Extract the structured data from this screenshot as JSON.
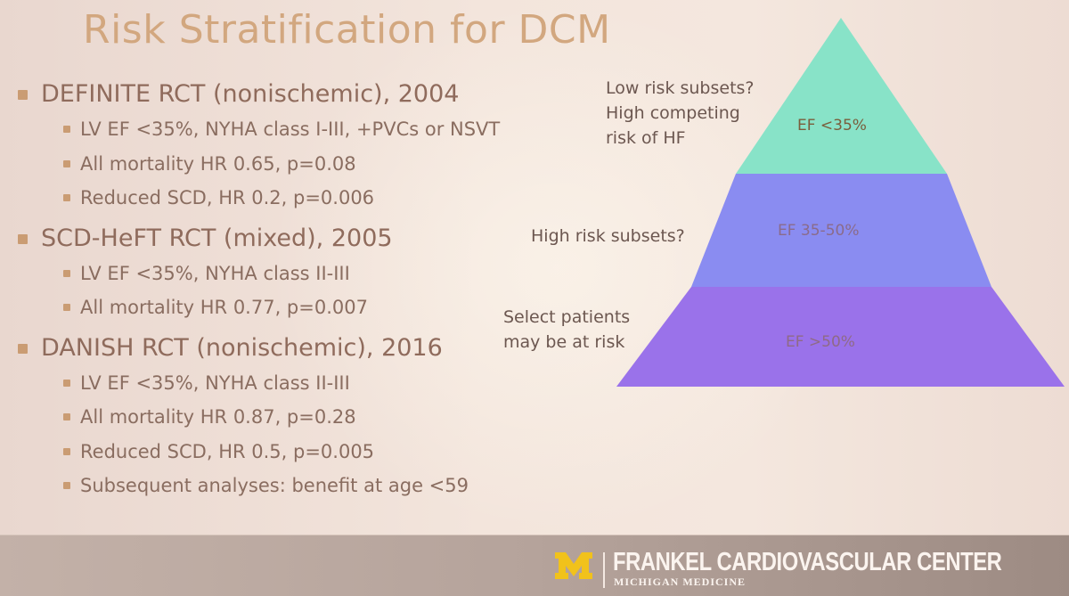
{
  "slide": {
    "title": "Risk Stratification for DCM",
    "bullets": [
      {
        "heading": "DEFINITE RCT (nonischemic), 2004",
        "items": [
          "LV EF <35%, NYHA class I-III, +PVCs or NSVT",
          "All mortality HR 0.65, p=0.08",
          "Reduced SCD, HR 0.2, p=0.006"
        ]
      },
      {
        "heading": "SCD-HeFT RCT (mixed), 2005",
        "items": [
          "LV EF <35%, NYHA class II-III",
          "All mortality HR 0.77, p=0.007"
        ]
      },
      {
        "heading": "DANISH RCT (nonischemic), 2016",
        "items": [
          "LV EF <35%, NYHA class II-III",
          "All mortality HR 0.87, p=0.28",
          "Reduced SCD, HR 0.5, p=0.005",
          "Subsequent analyses: benefit at age <59"
        ]
      }
    ]
  },
  "pyramid": {
    "tiers": [
      {
        "label": "EF <35%",
        "fill": "#88e3c8",
        "text_color": "#7a5e3c"
      },
      {
        "label": "EF 35-50%",
        "fill": "#8a8cf1",
        "text_color": "#8a6b8a"
      },
      {
        "label": "EF >50%",
        "fill": "#9a72ea",
        "text_color": "#8f6a86"
      }
    ],
    "side_labels": {
      "top": [
        "Low risk subsets?",
        "High competing",
        "risk of HF"
      ],
      "middle": "High risk subsets?",
      "bottom": [
        "Select patients",
        "may be at risk"
      ]
    }
  },
  "footer": {
    "logo_letter": "M",
    "logo_color": "#f1c21b",
    "center_name": "FRANKEL CARDIOVASCULAR CENTER",
    "org_name": "MICHIGAN MEDICINE"
  }
}
